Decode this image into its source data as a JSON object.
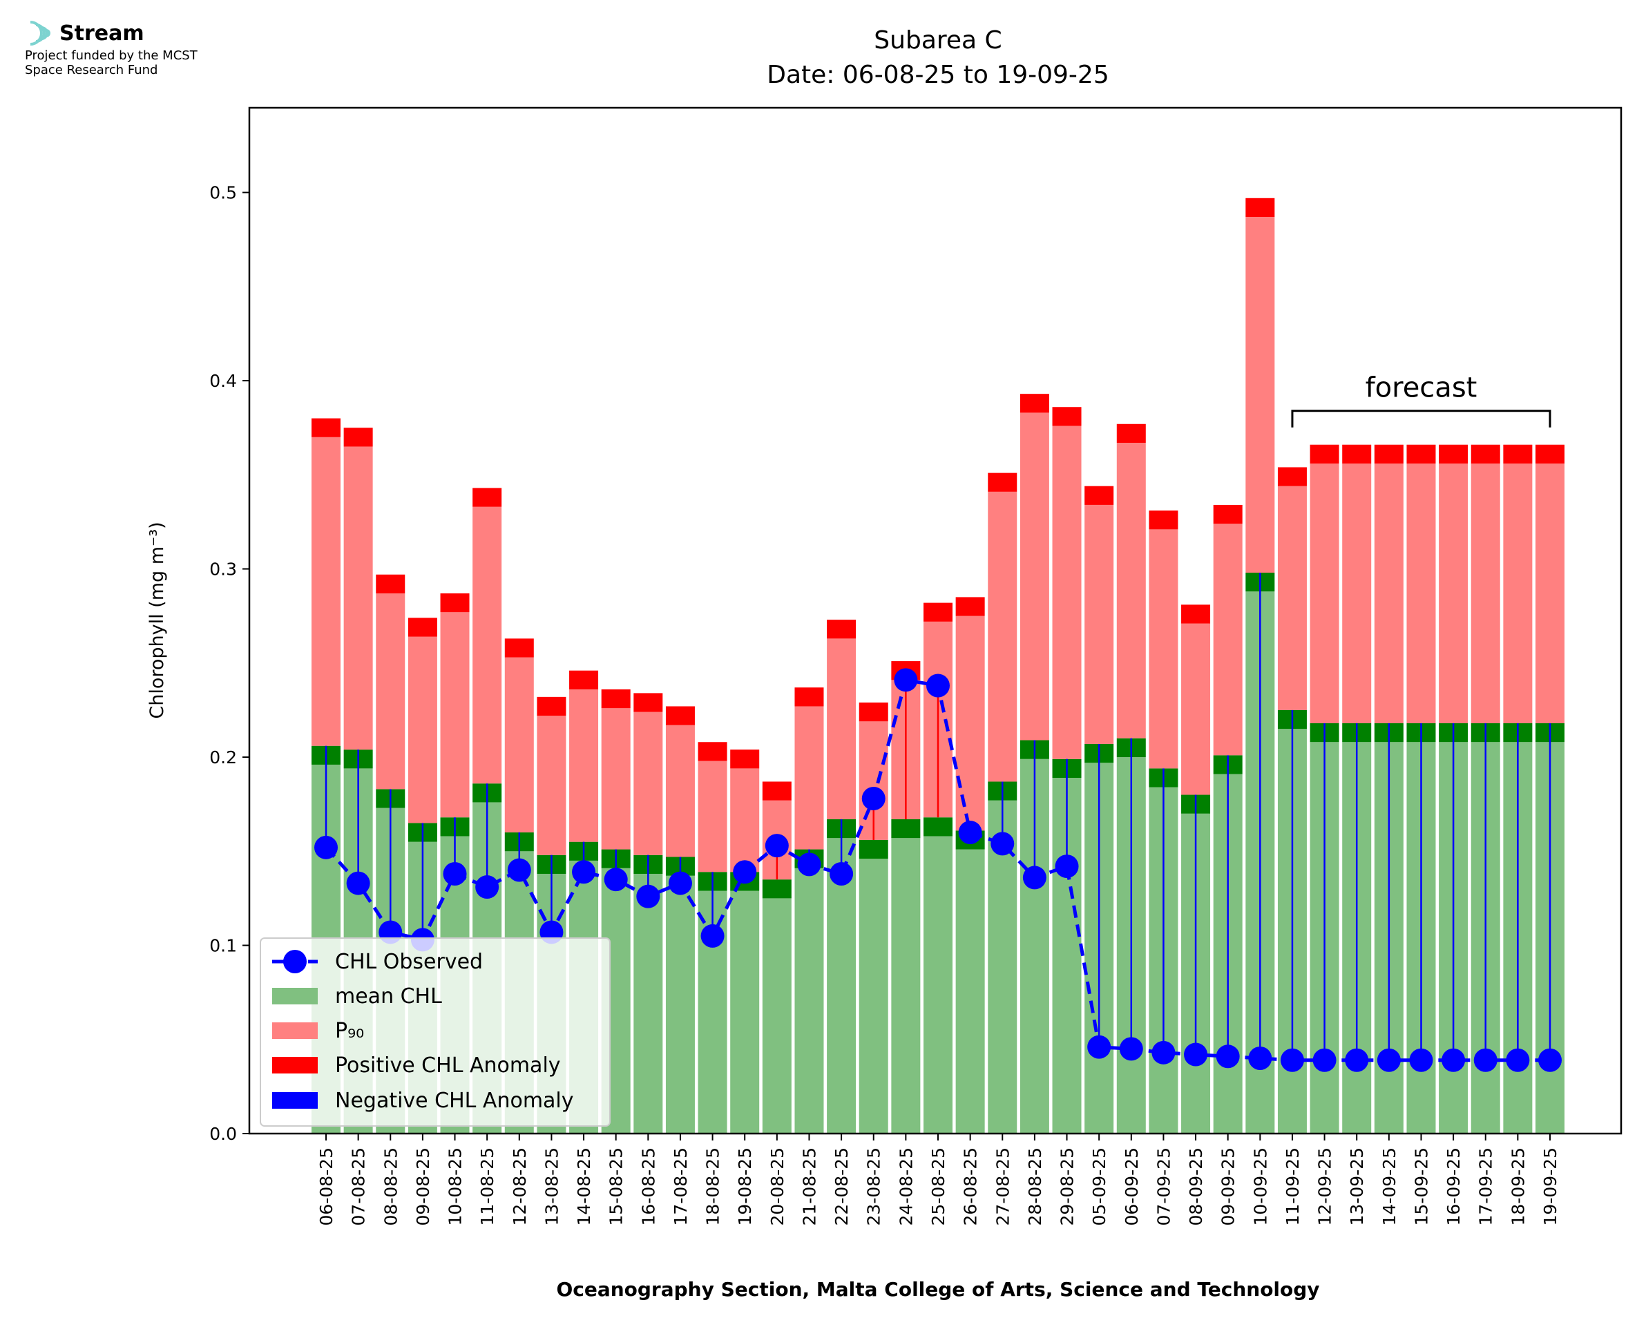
{
  "logo": {
    "name": "Stream",
    "funding_line1": "Project funded by the MCST",
    "funding_line2": "Space Research Fund"
  },
  "chart_data": {
    "type": "bar",
    "title": "Subarea C",
    "subtitle": "Date: 06-08-25 to 19-09-25",
    "xlabel": "Oceanography Section, Malta College of Arts, Science and Technology",
    "ylabel": "Chlorophyll (mg m⁻³)",
    "ylim": [
      0.0,
      0.545
    ],
    "yticks": [
      "0.0",
      "0.1",
      "0.2",
      "0.3",
      "0.4",
      "0.5"
    ],
    "grid": false,
    "legend_position": "lower-left",
    "categories": [
      "06-08-25",
      "07-08-25",
      "08-08-25",
      "09-08-25",
      "10-08-25",
      "11-08-25",
      "12-08-25",
      "13-08-25",
      "14-08-25",
      "15-08-25",
      "16-08-25",
      "17-08-25",
      "18-08-25",
      "19-08-25",
      "20-08-25",
      "21-08-25",
      "22-08-25",
      "23-08-25",
      "24-08-25",
      "25-08-25",
      "26-08-25",
      "27-08-25",
      "28-08-25",
      "29-08-25",
      "05-09-25",
      "06-09-25",
      "07-09-25",
      "08-09-25",
      "09-09-25",
      "10-09-25",
      "11-09-25",
      "12-09-25",
      "13-09-25",
      "14-09-25",
      "15-09-25",
      "16-09-25",
      "17-09-25",
      "18-09-25",
      "19-09-25"
    ],
    "series": [
      {
        "name": "CHL Observed",
        "style": "dashed line with markers",
        "color": "#0000ff",
        "values": [
          0.152,
          0.133,
          0.107,
          0.103,
          0.138,
          0.131,
          0.14,
          0.107,
          0.139,
          0.135,
          0.126,
          0.133,
          0.105,
          0.139,
          0.153,
          0.143,
          0.138,
          0.178,
          0.241,
          0.238,
          0.16,
          0.154,
          0.136,
          0.142,
          0.046,
          0.045,
          0.043,
          0.042,
          0.041,
          0.04,
          0.039,
          0.039,
          0.039,
          0.039,
          0.039,
          0.039,
          0.039,
          0.039,
          0.039
        ]
      },
      {
        "name": "mean CHL",
        "color": "#80c080",
        "values": [
          0.206,
          0.204,
          0.183,
          0.165,
          0.168,
          0.186,
          0.16,
          0.148,
          0.155,
          0.151,
          0.148,
          0.147,
          0.139,
          0.139,
          0.135,
          0.151,
          0.167,
          0.156,
          0.167,
          0.168,
          0.161,
          0.187,
          0.209,
          0.199,
          0.207,
          0.21,
          0.194,
          0.18,
          0.201,
          0.298,
          0.225,
          0.218,
          0.218,
          0.218,
          0.218,
          0.218,
          0.218,
          0.218,
          0.218
        ]
      },
      {
        "name": "P₉₀",
        "color": "#ff8080",
        "values": [
          0.38,
          0.375,
          0.297,
          0.274,
          0.287,
          0.343,
          0.263,
          0.232,
          0.246,
          0.236,
          0.234,
          0.227,
          0.208,
          0.204,
          0.187,
          0.237,
          0.273,
          0.229,
          0.251,
          0.282,
          0.285,
          0.351,
          0.393,
          0.386,
          0.344,
          0.377,
          0.331,
          0.281,
          0.334,
          0.497,
          0.354,
          0.366,
          0.366,
          0.366,
          0.366,
          0.366,
          0.366,
          0.366,
          0.366
        ]
      }
    ],
    "legend": [
      "CHL Observed",
      "mean CHL",
      "P₉₀",
      "Positive CHL Anomaly",
      "Negative CHL Anomaly"
    ],
    "anomaly_colors": {
      "positive": "#ff0000",
      "negative": "#0000ff",
      "mean_band": "#008000"
    },
    "annotation": {
      "text": "forecast",
      "from_category": "11-09-25",
      "to_category": "19-09-25",
      "value": 0.384
    }
  }
}
